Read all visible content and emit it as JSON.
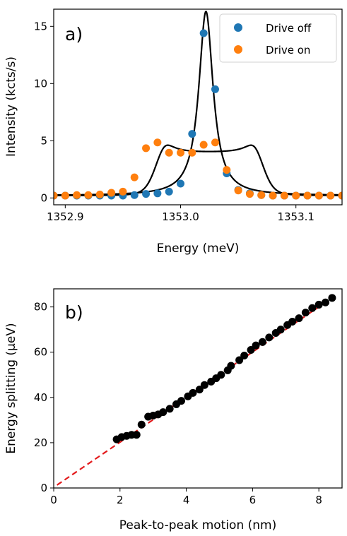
{
  "chart_data": [
    {
      "type": "scatter",
      "panel_label": "a)",
      "xlabel": "Energy (meV)",
      "ylabel": "Intensity (kcts/s)",
      "xlim": [
        1352.89,
        1353.14
      ],
      "ylim": [
        -0.6,
        16.5
      ],
      "xticks": [
        1352.9,
        1353.0,
        1353.1
      ],
      "xtick_labels": [
        "1352.9",
        "1353.0",
        "1353.1"
      ],
      "yticks": [
        0,
        5,
        10,
        15
      ],
      "ytick_labels": [
        "0",
        "5",
        "10",
        "15"
      ],
      "grid": false,
      "legend": {
        "placement": "top-right",
        "entries": [
          "Drive off",
          "Drive on"
        ]
      },
      "series": [
        {
          "name": "Drive off",
          "color": "#1f77b4",
          "x": [
            1352.89,
            1352.9,
            1352.91,
            1352.92,
            1352.93,
            1352.94,
            1352.95,
            1352.96,
            1352.97,
            1352.98,
            1352.99,
            1353.0,
            1353.01,
            1353.02,
            1353.03,
            1353.04,
            1353.05,
            1353.06,
            1353.07,
            1353.08,
            1353.09,
            1353.1,
            1353.11,
            1353.12,
            1353.13,
            1353.14
          ],
          "y": [
            0.2,
            0.2,
            0.2,
            0.2,
            0.2,
            0.2,
            0.2,
            0.25,
            0.35,
            0.4,
            0.55,
            1.25,
            5.6,
            14.4,
            9.5,
            2.15,
            0.7,
            0.4,
            0.25,
            0.2,
            0.2,
            0.2,
            0.2,
            0.2,
            0.2,
            0.2
          ]
        },
        {
          "name": "Drive on",
          "color": "#ff7f0e",
          "x": [
            1352.89,
            1352.9,
            1352.91,
            1352.92,
            1352.93,
            1352.94,
            1352.95,
            1352.96,
            1352.97,
            1352.98,
            1352.99,
            1353.0,
            1353.01,
            1353.02,
            1353.03,
            1353.04,
            1353.05,
            1353.06,
            1353.07,
            1353.08,
            1353.09,
            1353.1,
            1353.11,
            1353.12,
            1353.13,
            1353.14
          ],
          "y": [
            0.2,
            0.2,
            0.25,
            0.25,
            0.3,
            0.45,
            0.55,
            1.8,
            4.35,
            4.85,
            3.95,
            3.95,
            3.95,
            4.65,
            4.85,
            2.45,
            0.65,
            0.35,
            0.25,
            0.2,
            0.2,
            0.2,
            0.2,
            0.2,
            0.2,
            0.2
          ]
        }
      ],
      "fit_curves": [
        {
          "kind": "lorentzian",
          "color": "#000000",
          "center": 1353.022,
          "amplitude": 16.1,
          "hwhm": 0.0075,
          "offset": 0.2
        },
        {
          "kind": "split-peak",
          "color": "#000000",
          "centers": [
            1352.978,
            1353.072
          ],
          "width": 0.0045,
          "plateau": 3.75,
          "shoulder_center": [
            1352.986,
            1353.064
          ],
          "shoulder_amplitude": 1.05,
          "shoulder_hwhm": 0.009,
          "offset": 0.2
        }
      ]
    },
    {
      "type": "scatter",
      "panel_label": "b)",
      "xlabel": "Peak-to-peak motion (nm)",
      "ylabel": "Energy splitting (μeV)",
      "xlim": [
        0,
        8.7
      ],
      "ylim": [
        0,
        88
      ],
      "xticks": [
        0,
        2,
        4,
        6,
        8
      ],
      "xtick_labels": [
        "0",
        "2",
        "4",
        "6",
        "8"
      ],
      "yticks": [
        0,
        20,
        40,
        60,
        80
      ],
      "ytick_labels": [
        "0",
        "20",
        "40",
        "60",
        "80"
      ],
      "grid": false,
      "series": [
        {
          "name": "",
          "color": "#000000",
          "x": [
            1.9,
            2.05,
            2.2,
            2.35,
            2.5,
            2.65,
            2.85,
            3.0,
            3.15,
            3.3,
            3.5,
            3.7,
            3.85,
            4.05,
            4.2,
            4.4,
            4.55,
            4.75,
            4.9,
            5.05,
            5.25,
            5.35,
            5.6,
            5.75,
            5.95,
            6.1,
            6.3,
            6.5,
            6.7,
            6.85,
            7.05,
            7.2,
            7.4,
            7.6,
            7.8,
            8.0,
            8.2,
            8.4
          ],
          "y": [
            21.5,
            22.5,
            23.0,
            23.5,
            23.5,
            28.0,
            31.5,
            32.0,
            32.5,
            33.5,
            35.0,
            37.0,
            38.5,
            40.5,
            42.0,
            43.5,
            45.5,
            47.0,
            48.5,
            50.0,
            52.0,
            54.0,
            56.5,
            58.5,
            61.0,
            63.0,
            64.5,
            66.5,
            68.5,
            70.0,
            72.0,
            73.5,
            75.0,
            77.5,
            79.5,
            81.0,
            82.0,
            84.0
          ]
        }
      ],
      "fit_line": {
        "color": "#e31a1c",
        "style": "dashed",
        "x": [
          0.1,
          8.4
        ],
        "y": [
          1.3,
          84.0
        ]
      }
    }
  ]
}
